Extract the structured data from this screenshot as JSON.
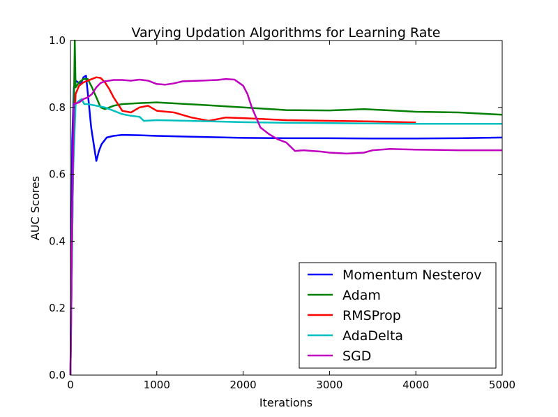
{
  "chart_data": {
    "type": "line",
    "title": "Varying Updation Algorithms for Learning Rate",
    "xlabel": "Iterations",
    "ylabel": "AUC Scores",
    "xlim": [
      0,
      5000
    ],
    "ylim": [
      0.0,
      1.0
    ],
    "x_ticks": [
      "0",
      "1000",
      "2000",
      "3000",
      "4000",
      "5000"
    ],
    "y_ticks": [
      "0.0",
      "0.2",
      "0.4",
      "0.6",
      "0.8",
      "1.0"
    ],
    "grid": false,
    "legend_position": "lower-right",
    "series": [
      {
        "name": "Momentum Nesterov",
        "color": "#0000ff",
        "points": [
          [
            0,
            0.0
          ],
          [
            20,
            0.7
          ],
          [
            40,
            0.86
          ],
          [
            60,
            0.88
          ],
          [
            90,
            0.875
          ],
          [
            120,
            0.87
          ],
          [
            150,
            0.89
          ],
          [
            180,
            0.895
          ],
          [
            210,
            0.82
          ],
          [
            240,
            0.74
          ],
          [
            270,
            0.69
          ],
          [
            300,
            0.64
          ],
          [
            330,
            0.67
          ],
          [
            360,
            0.69
          ],
          [
            390,
            0.7
          ],
          [
            420,
            0.71
          ],
          [
            500,
            0.715
          ],
          [
            600,
            0.718
          ],
          [
            800,
            0.717
          ],
          [
            1000,
            0.715
          ],
          [
            1500,
            0.712
          ],
          [
            2000,
            0.709
          ],
          [
            2500,
            0.708
          ],
          [
            3000,
            0.708
          ],
          [
            3500,
            0.707
          ],
          [
            4000,
            0.707
          ],
          [
            4500,
            0.708
          ],
          [
            5000,
            0.71
          ]
        ]
      },
      {
        "name": "Adam",
        "color": "#008000",
        "points": [
          [
            0,
            0.0
          ],
          [
            30,
            0.6
          ],
          [
            50,
            1.0
          ],
          [
            60,
            0.86
          ],
          [
            100,
            0.875
          ],
          [
            150,
            0.885
          ],
          [
            200,
            0.885
          ],
          [
            250,
            0.86
          ],
          [
            300,
            0.83
          ],
          [
            350,
            0.8
          ],
          [
            400,
            0.795
          ],
          [
            450,
            0.8
          ],
          [
            500,
            0.805
          ],
          [
            600,
            0.81
          ],
          [
            800,
            0.813
          ],
          [
            1000,
            0.815
          ],
          [
            1500,
            0.808
          ],
          [
            2000,
            0.8
          ],
          [
            2500,
            0.792
          ],
          [
            3000,
            0.791
          ],
          [
            3400,
            0.795
          ],
          [
            3800,
            0.79
          ],
          [
            4000,
            0.787
          ],
          [
            4500,
            0.785
          ],
          [
            5000,
            0.778
          ]
        ]
      },
      {
        "name": "RMSProp",
        "color": "#ff0000",
        "points": [
          [
            0,
            0.0
          ],
          [
            30,
            0.65
          ],
          [
            60,
            0.84
          ],
          [
            100,
            0.865
          ],
          [
            150,
            0.875
          ],
          [
            200,
            0.88
          ],
          [
            250,
            0.885
          ],
          [
            300,
            0.89
          ],
          [
            350,
            0.888
          ],
          [
            400,
            0.875
          ],
          [
            450,
            0.855
          ],
          [
            500,
            0.83
          ],
          [
            550,
            0.81
          ],
          [
            600,
            0.79
          ],
          [
            700,
            0.785
          ],
          [
            800,
            0.8
          ],
          [
            900,
            0.805
          ],
          [
            1000,
            0.79
          ],
          [
            1200,
            0.785
          ],
          [
            1400,
            0.77
          ],
          [
            1600,
            0.76
          ],
          [
            1800,
            0.77
          ],
          [
            2000,
            0.768
          ],
          [
            2500,
            0.762
          ],
          [
            3000,
            0.76
          ],
          [
            3500,
            0.758
          ],
          [
            4000,
            0.755
          ]
        ]
      },
      {
        "name": "AdaDelta",
        "color": "#00bfbf",
        "points": [
          [
            0,
            0.0
          ],
          [
            30,
            0.6
          ],
          [
            60,
            0.81
          ],
          [
            100,
            0.82
          ],
          [
            130,
            0.825
          ],
          [
            160,
            0.81
          ],
          [
            200,
            0.81
          ],
          [
            300,
            0.805
          ],
          [
            400,
            0.8
          ],
          [
            500,
            0.79
          ],
          [
            600,
            0.78
          ],
          [
            700,
            0.775
          ],
          [
            800,
            0.772
          ],
          [
            850,
            0.76
          ],
          [
            1000,
            0.762
          ],
          [
            1500,
            0.759
          ],
          [
            2000,
            0.756
          ],
          [
            2500,
            0.754
          ],
          [
            3000,
            0.753
          ],
          [
            3500,
            0.752
          ],
          [
            4000,
            0.751
          ],
          [
            4500,
            0.751
          ],
          [
            5000,
            0.751
          ]
        ]
      },
      {
        "name": "SGD",
        "color": "#bf00bf",
        "points": [
          [
            0,
            0.0
          ],
          [
            20,
            0.5
          ],
          [
            40,
            0.81
          ],
          [
            100,
            0.815
          ],
          [
            150,
            0.825
          ],
          [
            200,
            0.83
          ],
          [
            250,
            0.84
          ],
          [
            300,
            0.86
          ],
          [
            350,
            0.873
          ],
          [
            400,
            0.878
          ],
          [
            500,
            0.882
          ],
          [
            600,
            0.882
          ],
          [
            700,
            0.88
          ],
          [
            800,
            0.883
          ],
          [
            900,
            0.88
          ],
          [
            1000,
            0.87
          ],
          [
            1100,
            0.868
          ],
          [
            1200,
            0.872
          ],
          [
            1300,
            0.878
          ],
          [
            1500,
            0.88
          ],
          [
            1700,
            0.882
          ],
          [
            1800,
            0.885
          ],
          [
            1900,
            0.883
          ],
          [
            2000,
            0.865
          ],
          [
            2050,
            0.84
          ],
          [
            2100,
            0.8
          ],
          [
            2150,
            0.77
          ],
          [
            2200,
            0.74
          ],
          [
            2300,
            0.72
          ],
          [
            2400,
            0.705
          ],
          [
            2500,
            0.695
          ],
          [
            2600,
            0.67
          ],
          [
            2700,
            0.672
          ],
          [
            2800,
            0.67
          ],
          [
            2900,
            0.668
          ],
          [
            3000,
            0.665
          ],
          [
            3200,
            0.662
          ],
          [
            3400,
            0.665
          ],
          [
            3500,
            0.672
          ],
          [
            3700,
            0.676
          ],
          [
            4000,
            0.674
          ],
          [
            4500,
            0.672
          ],
          [
            5000,
            0.672
          ]
        ]
      }
    ]
  }
}
